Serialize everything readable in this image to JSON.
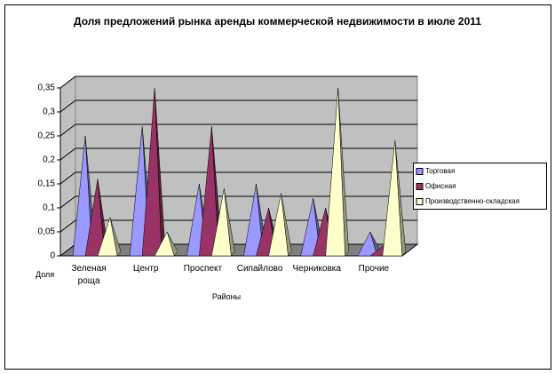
{
  "chart_data": {
    "type": "pyramid3d",
    "title": "Доля предложений рынка аренды коммерческой недвижимости в июле 2011",
    "y_label": "Доля",
    "x_label": "Районы",
    "categories": [
      "Зеленая роща",
      "Центр",
      "Проспект",
      "Сипайлово",
      "Черниковка",
      "Прочие"
    ],
    "series": [
      {
        "name": "Торговая",
        "color": "#9999ff",
        "values": [
          0.25,
          0.27,
          0.15,
          0.15,
          0.12,
          0.05
        ]
      },
      {
        "name": "Офисная",
        "color": "#993366",
        "values": [
          0.16,
          0.35,
          0.27,
          0.1,
          0.1,
          0.02
        ]
      },
      {
        "name": "Производственно-складская",
        "color": "#ffffcc",
        "values": [
          0.08,
          0.05,
          0.14,
          0.13,
          0.35,
          0.24
        ]
      }
    ],
    "ylim": [
      0,
      0.35
    ],
    "yticks": [
      0,
      {
        "value": 0.05,
        "label": "0,05"
      },
      {
        "value": 0.1,
        "label": "0,1"
      },
      {
        "value": 0.15,
        "label": "0,15"
      },
      {
        "value": 0.2,
        "label": "0,2"
      },
      {
        "value": 0.25,
        "label": "0,25"
      },
      {
        "value": 0.3,
        "label": "0,3"
      },
      {
        "value": 0.35,
        "label": "0,35"
      }
    ],
    "grid": true,
    "legend": "right"
  }
}
